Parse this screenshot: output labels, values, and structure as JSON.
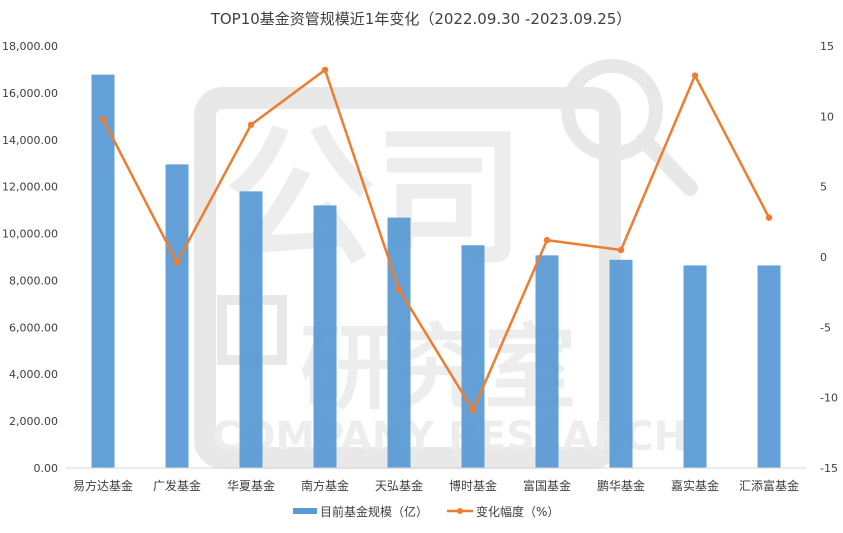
{
  "chart_data": {
    "type": "bar",
    "title": "TOP10基金资管规模近1年变化（2022.09.30 -2023.09.25）",
    "categories": [
      "易方达基金",
      "广发基金",
      "华夏基金",
      "南方基金",
      "天弘基金",
      "博时基金",
      "富国基金",
      "鹏华基金",
      "嘉实基金",
      "汇添富基金"
    ],
    "series": [
      {
        "name": "目前基金规模（亿）",
        "type": "bar",
        "axis": "left",
        "color": "#5b9bd5",
        "values": [
          16780,
          12950,
          11800,
          11200,
          10680,
          9500,
          9070,
          8880,
          8640,
          8640
        ]
      },
      {
        "name": "变化幅度（%）",
        "type": "line",
        "axis": "right",
        "color": "#ed7d31",
        "values": [
          9.8,
          -0.4,
          9.4,
          13.3,
          -2.3,
          -10.9,
          1.2,
          0.5,
          12.9,
          2.8
        ]
      }
    ],
    "y_left": {
      "min": 0,
      "max": 18000,
      "step": 2000,
      "ticks": [
        "0.00",
        "2,000.00",
        "4,000.00",
        "6,000.00",
        "8,000.00",
        "10,000.00",
        "12,000.00",
        "14,000.00",
        "16,000.00",
        "18,000.00"
      ]
    },
    "y_right": {
      "min": -15,
      "max": 15,
      "step": 5,
      "ticks": [
        "-15",
        "-10",
        "-5",
        "0",
        "5",
        "10",
        "15"
      ]
    },
    "grid": false,
    "legend_position": "bottom",
    "watermark": {
      "text_cn": "公司研究室",
      "text_en": "COMPANY RESEARCH"
    }
  }
}
